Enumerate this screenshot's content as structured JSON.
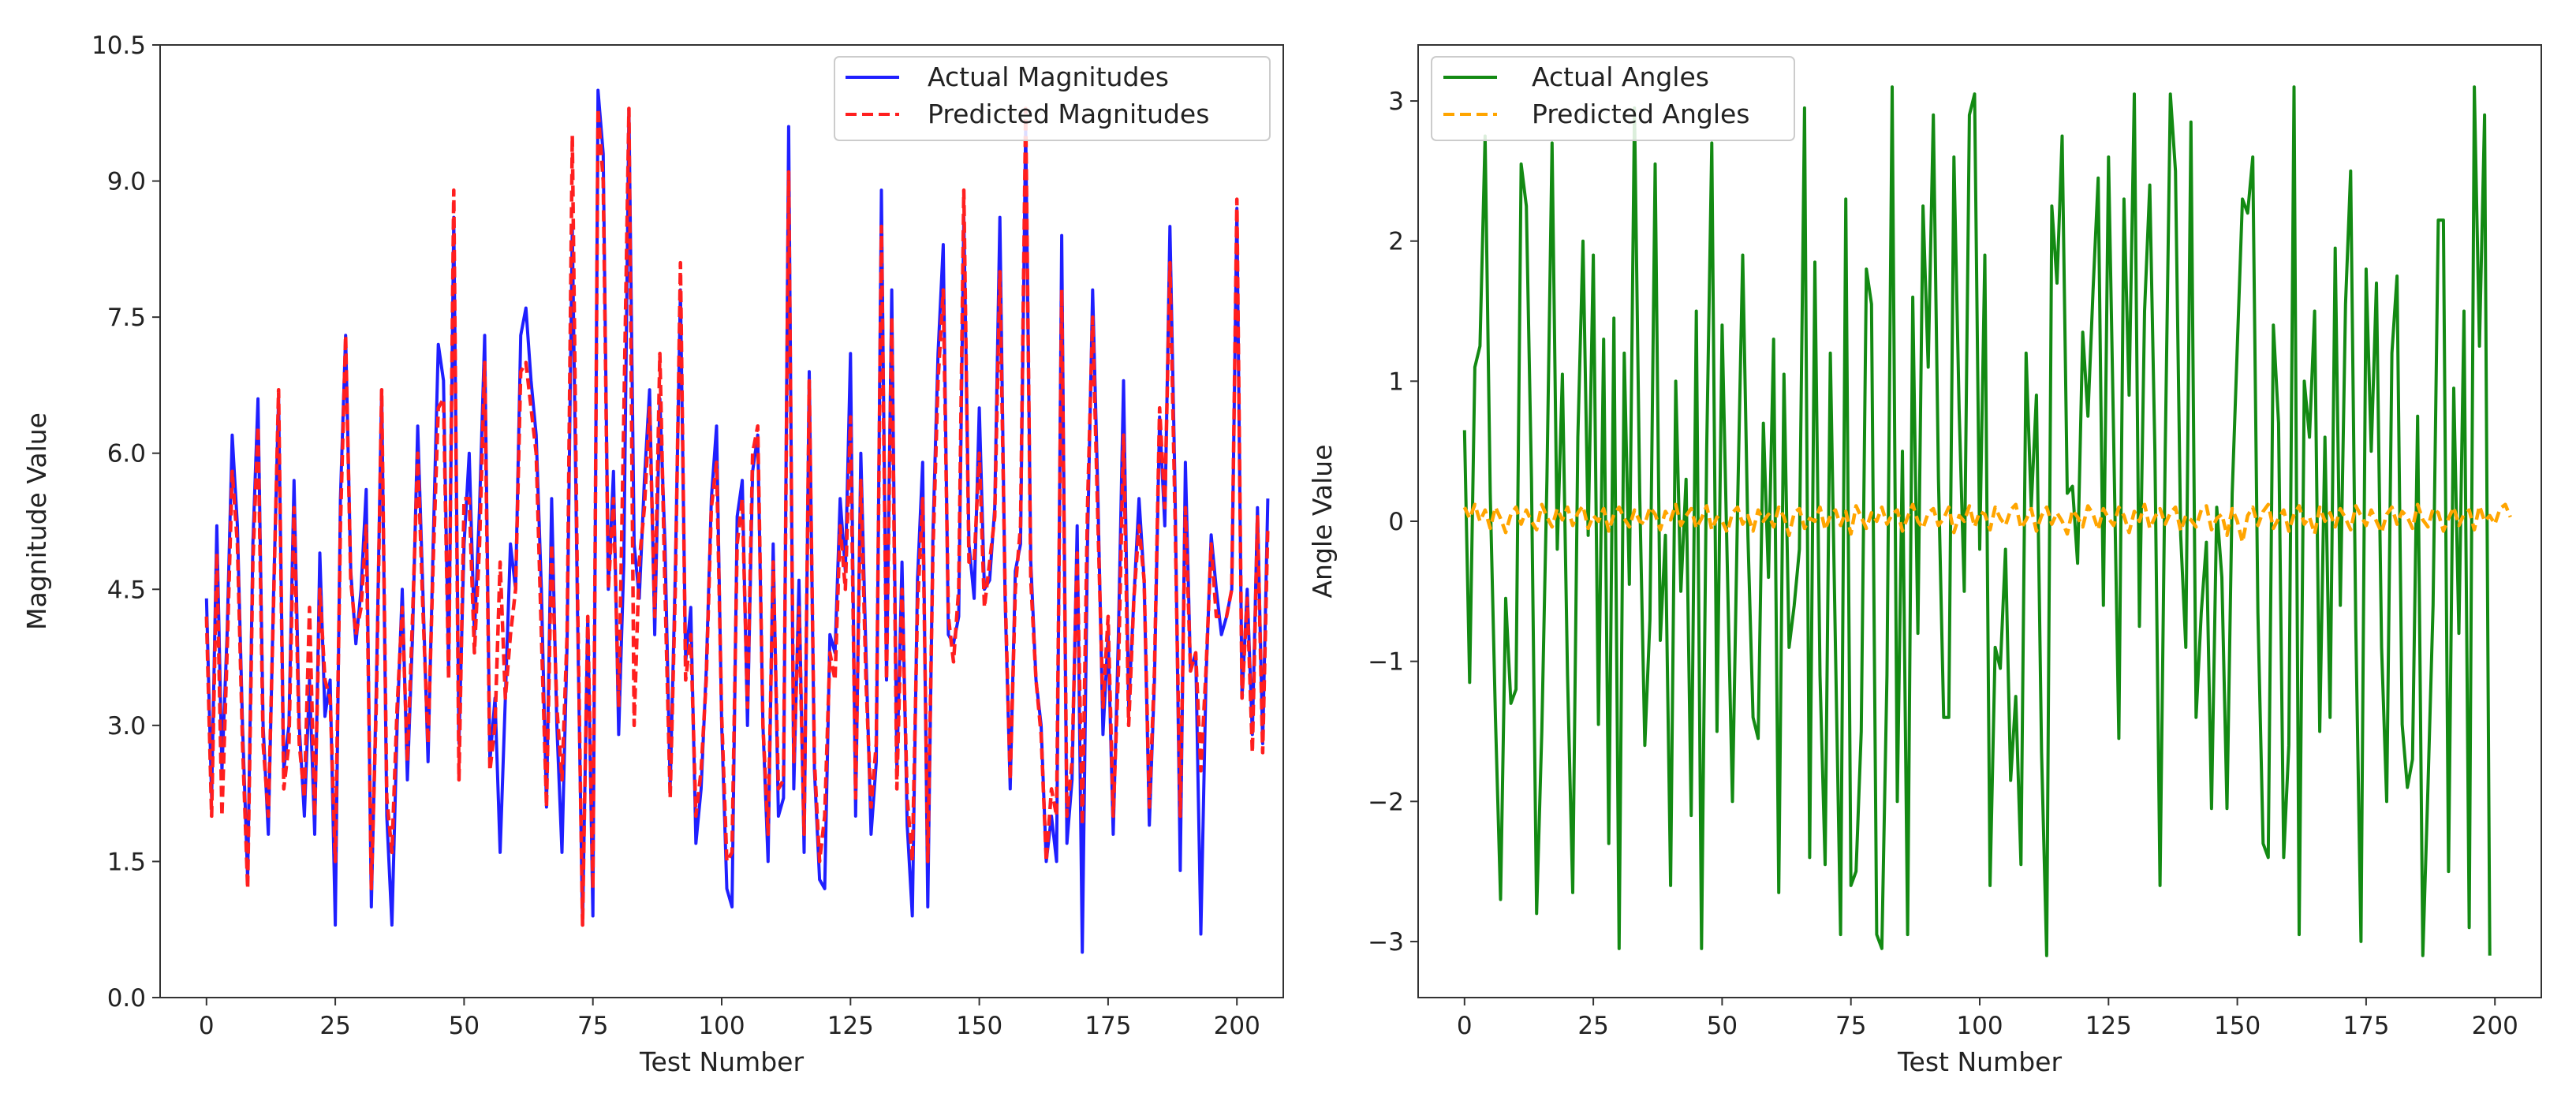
{
  "chart_data": [
    {
      "type": "line",
      "title": "",
      "xlabel": "Test Number",
      "ylabel": "Magnitude Value",
      "xlim": [
        -9,
        209
      ],
      "ylim": [
        0,
        10.5
      ],
      "xticks": [
        0,
        25,
        50,
        75,
        100,
        125,
        150,
        175,
        200
      ],
      "yticks": [
        0.0,
        1.5,
        3.0,
        4.5,
        6.0,
        7.5,
        9.0,
        10.5
      ],
      "ytick_labels": [
        "0.0",
        "1.5",
        "3.0",
        "4.5",
        "6.0",
        "7.5",
        "9.0",
        "10.5"
      ],
      "legend_position": "upper right",
      "series": [
        {
          "name": "Actual Magnitudes",
          "color": "#1f1fff",
          "style": "solid",
          "x_start": 0,
          "values": [
            4.4,
            2.2,
            5.2,
            2.5,
            4.0,
            6.2,
            5.2,
            3.0,
            1.3,
            5.0,
            6.6,
            3.0,
            1.8,
            4.4,
            6.6,
            2.5,
            3.0,
            5.7,
            3.0,
            2.0,
            3.5,
            1.8,
            4.9,
            3.1,
            3.5,
            0.8,
            5.5,
            7.3,
            4.7,
            3.9,
            4.5,
            5.6,
            1.0,
            3.5,
            6.7,
            2.0,
            0.8,
            3.0,
            4.5,
            2.4,
            4.0,
            6.3,
            4.5,
            2.6,
            5.0,
            7.2,
            6.8,
            3.6,
            8.6,
            2.8,
            5.0,
            6.0,
            4.0,
            5.4,
            7.3,
            2.6,
            3.3,
            1.6,
            3.3,
            5.0,
            4.5,
            7.3,
            7.6,
            6.8,
            6.2,
            4.5,
            2.1,
            5.5,
            3.0,
            1.6,
            3.9,
            8.5,
            4.3,
            0.8,
            4.2,
            0.9,
            10.0,
            9.3,
            4.5,
            5.8,
            2.9,
            4.8,
            9.8,
            5.0,
            4.4,
            5.7,
            6.7,
            4.0,
            6.6,
            5.0,
            2.3,
            4.7,
            7.8,
            3.7,
            4.3,
            1.7,
            2.3,
            3.6,
            5.5,
            6.3,
            3.0,
            1.2,
            1.0,
            5.3,
            5.7,
            3.0,
            5.8,
            6.2,
            3.0,
            1.5,
            5.0,
            2.0,
            2.2,
            9.6,
            2.3,
            4.6,
            1.6,
            6.9,
            2.5,
            1.3,
            1.2,
            4.0,
            3.8,
            5.5,
            4.7,
            7.1,
            2.0,
            6.0,
            3.8,
            1.8,
            2.6,
            8.9,
            3.5,
            7.8,
            2.5,
            4.8,
            1.9,
            0.9,
            4.6,
            5.9,
            1.0,
            5.1,
            7.1,
            8.3,
            4.0,
            3.9,
            4.2,
            8.6,
            5.0,
            4.4,
            6.5,
            4.5,
            4.6,
            5.4,
            8.6,
            4.4,
            2.3,
            4.7,
            5.0,
            9.6,
            4.8,
            3.5,
            3.0,
            1.5,
            2.0,
            1.5,
            8.4,
            1.7,
            2.4,
            5.2,
            0.5,
            5.0,
            7.8,
            5.6,
            2.9,
            4.0,
            1.8,
            4.0,
            6.8,
            3.2,
            4.4,
            5.5,
            4.6,
            1.9,
            3.5,
            6.4,
            5.2,
            8.5,
            5.6,
            1.4,
            5.9,
            3.6,
            3.8,
            0.7,
            3.5,
            5.1,
            4.5,
            4.0,
            4.2,
            4.5,
            8.7,
            3.3,
            4.5,
            2.9,
            5.4,
            2.8,
            5.5
          ]
        },
        {
          "name": "Predicted Magnitudes",
          "color": "#ff1f1f",
          "style": "dashed",
          "x_start": 0,
          "values": [
            4.2,
            2.0,
            4.9,
            2.0,
            3.8,
            5.8,
            5.0,
            2.8,
            1.2,
            4.8,
            6.3,
            2.8,
            2.0,
            4.3,
            6.7,
            2.3,
            2.8,
            5.4,
            2.8,
            2.2,
            4.3,
            2.0,
            4.5,
            3.5,
            3.3,
            1.5,
            5.2,
            7.3,
            4.6,
            4.0,
            4.3,
            5.2,
            1.2,
            3.3,
            6.7,
            2.2,
            1.6,
            3.2,
            4.3,
            2.6,
            4.2,
            6.0,
            4.3,
            2.8,
            4.8,
            6.5,
            6.6,
            3.5,
            8.9,
            2.4,
            5.5,
            5.5,
            3.8,
            5.0,
            7.0,
            2.5,
            3.0,
            4.8,
            3.3,
            4.0,
            4.5,
            6.9,
            7.0,
            6.5,
            6.0,
            4.0,
            2.1,
            5.0,
            3.2,
            2.4,
            4.0,
            9.5,
            4.5,
            0.8,
            4.2,
            1.2,
            9.8,
            9.0,
            4.5,
            5.5,
            3.2,
            6.4,
            9.8,
            3.0,
            4.8,
            5.4,
            6.5,
            4.2,
            7.1,
            4.5,
            2.2,
            4.5,
            8.1,
            3.5,
            4.0,
            2.0,
            2.5,
            3.5,
            5.4,
            5.9,
            3.1,
            1.5,
            1.6,
            5.0,
            5.5,
            3.2,
            6.0,
            6.3,
            3.0,
            1.8,
            4.8,
            2.3,
            2.4,
            9.1,
            2.6,
            4.3,
            1.8,
            6.8,
            2.6,
            1.5,
            2.0,
            3.8,
            3.5,
            5.2,
            4.5,
            6.4,
            2.2,
            5.7,
            3.5,
            2.1,
            2.8,
            8.5,
            3.5,
            7.5,
            2.3,
            4.5,
            2.2,
            1.5,
            4.3,
            5.5,
            1.5,
            4.9,
            6.8,
            7.8,
            4.2,
            3.7,
            4.5,
            8.9,
            4.8,
            4.8,
            6.0,
            4.3,
            4.8,
            5.3,
            8.0,
            4.5,
            2.4,
            4.5,
            5.2,
            9.8,
            4.6,
            3.5,
            2.9,
            1.5,
            2.3,
            2.0,
            7.8,
            2.0,
            2.6,
            4.9,
            1.9,
            5.4,
            7.5,
            5.3,
            3.2,
            4.2,
            2.0,
            3.6,
            6.2,
            3.0,
            4.4,
            5.2,
            4.6,
            2.1,
            3.6,
            6.5,
            5.4,
            8.1,
            5.3,
            2.0,
            5.4,
            3.6,
            3.8,
            2.5,
            3.6,
            5.0,
            4.2,
            4.2,
            4.2,
            4.5,
            8.8,
            3.3,
            4.4,
            2.7,
            5.3,
            2.7,
            5.2
          ]
        }
      ]
    },
    {
      "type": "line",
      "title": "",
      "xlabel": "Test Number",
      "ylabel": "Angle Value",
      "xlim": [
        -9,
        209
      ],
      "ylim": [
        -3.4,
        3.4
      ],
      "xticks": [
        0,
        25,
        50,
        75,
        100,
        125,
        150,
        175,
        200
      ],
      "yticks": [
        -3,
        -2,
        -1,
        0,
        1,
        2,
        3
      ],
      "ytick_labels": [
        "−3",
        "−2",
        "−1",
        "0",
        "1",
        "2",
        "3"
      ],
      "legend_position": "upper left",
      "series": [
        {
          "name": "Actual Angles",
          "color": "#138a13",
          "style": "solid",
          "x_start": 0,
          "values": [
            0.65,
            -1.15,
            1.1,
            1.25,
            2.75,
            0.2,
            -1.4,
            -2.7,
            -0.55,
            -1.3,
            -1.2,
            2.55,
            2.25,
            0.3,
            -2.8,
            -1.5,
            0.3,
            2.7,
            -0.2,
            1.05,
            -1.1,
            -2.65,
            0.6,
            2.0,
            -0.1,
            1.9,
            -1.45,
            1.3,
            -2.3,
            1.45,
            -3.05,
            1.2,
            -0.45,
            2.95,
            0.2,
            -1.6,
            -0.7,
            2.55,
            -0.85,
            -0.1,
            -2.6,
            1.0,
            -0.5,
            0.3,
            -2.1,
            1.5,
            -3.05,
            0.5,
            2.7,
            -1.5,
            1.4,
            -0.3,
            -2.0,
            0.1,
            1.9,
            -0.1,
            -1.4,
            -1.55,
            0.7,
            -0.4,
            1.3,
            -2.65,
            1.05,
            -0.9,
            -0.6,
            -0.2,
            2.95,
            -2.4,
            1.85,
            -1.1,
            -2.45,
            1.2,
            -0.9,
            -2.95,
            2.3,
            -2.6,
            -2.5,
            -1.5,
            1.8,
            1.55,
            -2.95,
            -3.05,
            -1.1,
            3.1,
            -2.0,
            0.5,
            -2.95,
            1.6,
            -0.8,
            2.25,
            1.1,
            2.9,
            0.3,
            -1.4,
            -1.4,
            2.6,
            0.8,
            -0.5,
            2.9,
            3.05,
            -0.2,
            1.9,
            -2.6,
            -0.9,
            -1.05,
            -0.2,
            -1.85,
            -1.25,
            -2.45,
            1.2,
            0.1,
            0.9,
            -1.65,
            -3.1,
            2.25,
            1.7,
            2.75,
            0.2,
            0.25,
            -0.3,
            1.35,
            0.75,
            1.65,
            2.45,
            -0.6,
            2.6,
            0.6,
            -1.55,
            2.3,
            0.9,
            3.05,
            -0.75,
            1.5,
            2.4,
            0.5,
            -2.6,
            0.5,
            3.05,
            2.5,
            -0.1,
            -0.9,
            2.85,
            -1.4,
            -0.65,
            -0.15,
            -2.05,
            0.1,
            -0.4,
            -2.05,
            0.2,
            1.25,
            2.3,
            2.2,
            2.6,
            -0.65,
            -2.3,
            -2.4,
            1.4,
            0.7,
            -2.4,
            -1.6,
            3.1,
            -2.95,
            1.0,
            0.6,
            1.5,
            -1.5,
            0.6,
            -1.4,
            1.95,
            -0.6,
            1.55,
            2.5,
            -0.75,
            -3.0,
            1.8,
            0.5,
            1.7,
            -0.9,
            -2.0,
            1.2,
            1.75,
            -1.45,
            -1.9,
            -1.7,
            0.75,
            -3.1,
            -1.9,
            -0.6,
            2.15,
            2.15,
            -2.5,
            0.95,
            -0.8,
            1.5,
            -2.9,
            3.1,
            1.25,
            2.9,
            -3.1
          ]
        },
        {
          "name": "Predicted Angles",
          "color": "#ffa500",
          "style": "dashed",
          "x_start": 0,
          "values": [
            0.1,
            0.02,
            0.12,
            0.0,
            0.08,
            -0.05,
            0.1,
            0.02,
            -0.08,
            0.05,
            0.1,
            -0.02,
            0.08,
            0.0,
            -0.06,
            0.12,
            0.03,
            -0.04,
            0.09,
            0.01,
            0.1,
            -0.03,
            0.06,
            0.11,
            -0.05,
            0.04,
            0.0,
            0.09,
            -0.07,
            0.05,
            0.1,
            0.02,
            -0.04,
            0.08,
            0.0,
            -0.02,
            0.1,
            0.05,
            -0.06,
            0.07,
            0.01,
            0.12,
            -0.03,
            0.04,
            0.09,
            -0.05,
            0.02,
            0.11,
            -0.06,
            0.03,
            0.0,
            -0.08,
            0.06,
            0.1,
            -0.02,
            0.04,
            -0.07,
            0.08,
            0.0,
            0.05,
            -0.04,
            0.1,
            0.03,
            -0.1,
            0.06,
            0.09,
            -0.05,
            0.02,
            0.0,
            0.1,
            -0.06,
            0.04,
            0.08,
            -0.03,
            0.07,
            -0.09,
            0.11,
            0.03,
            -0.05,
            0.06,
            0.0,
            0.1,
            -0.02,
            0.05,
            0.08,
            -0.07,
            0.03,
            0.12,
            0.0,
            -0.05,
            0.06,
            0.09,
            -0.03,
            0.02,
            0.1,
            -0.08,
            0.04,
            0.0,
            0.11,
            -0.04,
            0.07,
            0.05,
            -0.06,
            0.1,
            0.02,
            -0.03,
            0.08,
            0.12,
            -0.05,
            0.01,
            0.09,
            -0.07,
            0.04,
            0.1,
            -0.02,
            0.06,
            0.0,
            -0.09,
            0.08,
            0.03,
            -0.04,
            0.11,
            0.05,
            -0.06,
            0.09,
            0.02,
            -0.03,
            0.1,
            0.04,
            -0.08,
            0.07,
            0.0,
            0.12,
            -0.05,
            0.03,
            0.09,
            -0.02,
            0.06,
            0.1,
            -0.07,
            0.04,
            0.01,
            -0.04,
            0.08,
            0.11,
            -0.06,
            0.02,
            0.05,
            -0.1,
            0.09,
            0.0,
            -0.15,
            0.04,
            0.1,
            -0.03,
            0.07,
            0.12,
            -0.05,
            0.02,
            0.08,
            -0.07,
            0.05,
            0.11,
            -0.02,
            0.03,
            -0.09,
            0.1,
            0.0,
            0.06,
            -0.04,
            0.09,
            0.02,
            -0.06,
            0.11,
            0.04,
            -0.03,
            0.08,
            0.0,
            -0.08,
            0.05,
            0.1,
            -0.02,
            0.07,
            0.03,
            -0.05,
            0.12,
            0.01,
            -0.04,
            0.09,
            0.06,
            -0.07,
            0.02,
            0.1,
            -0.03,
            0.05,
            0.08,
            -0.06,
            0.11,
            0.0,
            0.04,
            -0.02,
            0.09,
            0.12,
            0.03
          ]
        }
      ]
    }
  ]
}
